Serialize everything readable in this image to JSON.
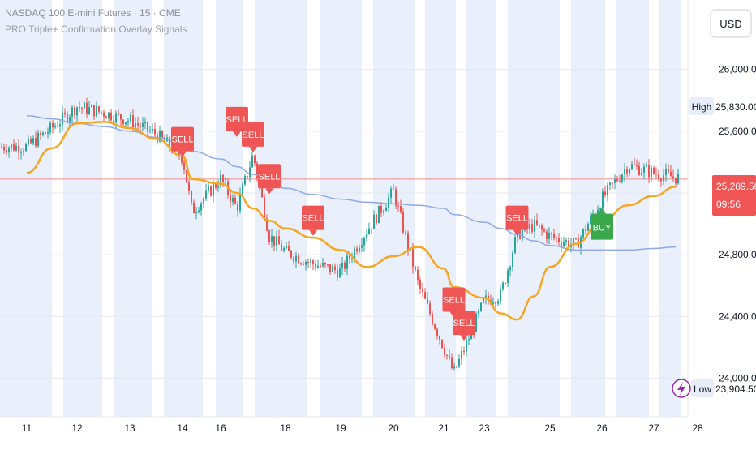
{
  "header": {
    "symbol_line": "NASDAQ 100 E-mini Futures · 15 · CME",
    "indicator_line": "PRO Triple+ Confirmation Overlay Signals"
  },
  "price_axis": {
    "currency_button": "USD",
    "tick_labels": [
      "26,000.00",
      "25,600.00",
      "24,800.00",
      "24,400.00",
      "24,000.00"
    ],
    "high_tag": "High",
    "high_value": "25,830.00",
    "low_tag": "Low",
    "low_value": "23,904.50",
    "last_price": "25,289.50",
    "countdown": "09:56"
  },
  "time_axis": {
    "labels": [
      "11",
      "12",
      "13",
      "14",
      "16",
      "18",
      "19",
      "20",
      "21",
      "23",
      "25",
      "26",
      "27",
      "28"
    ]
  },
  "colors": {
    "up_candle": "#26a69a",
    "down_candle": "#ef5350",
    "ma_fast": "#f5a623",
    "ma_slow": "#8fa9e6",
    "sell_label": "#f05555",
    "buy_label": "#3aa84a",
    "session_band": "#e9effb",
    "last_price_line": "#f28b8b"
  },
  "chart_data": {
    "type": "line",
    "title": "NASDAQ 100 E-mini Futures · 15 · CME",
    "x": [
      "11",
      "11.5",
      "12",
      "12.5",
      "13",
      "13.5",
      "14",
      "14.5",
      "16",
      "16.5",
      "17",
      "17.5",
      "18",
      "18.5",
      "19",
      "19.5",
      "20",
      "20.5",
      "21",
      "21.5",
      "23",
      "23.5",
      "24",
      "24.5",
      "25",
      "25.5",
      "26",
      "26.5",
      "27",
      "27.5"
    ],
    "ylim": [
      23750,
      26450
    ],
    "series": [
      {
        "values": [
          25500,
          25620,
          25760,
          25720,
          25670,
          25580,
          25430,
          25080,
          25290,
          25100,
          25450,
          24920,
          24820,
          24740,
          24690,
          24960,
          25210,
          24600,
          24200,
          24030,
          24500,
          24540,
          24930,
          24990,
          24920,
          24860,
          25160,
          25380,
          25330,
          25300
        ]
      },
      {
        "values": [
          25330,
          25490,
          25650,
          25660,
          25620,
          25550,
          25440,
          25290,
          25260,
          25200,
          25100,
          25020,
          24970,
          24910,
          24830,
          24720,
          24790,
          24850,
          24710,
          24590,
          24520,
          24420,
          24380,
          24530,
          24720,
          24870,
          25020,
          25120,
          25180,
          25240
        ]
      },
      {
        "values": [
          25700,
          25680,
          25650,
          25630,
          25600,
          25560,
          25520,
          25470,
          25420,
          25370,
          25320,
          25270,
          25230,
          25190,
          25160,
          25140,
          25130,
          25120,
          25100,
          25060,
          25010,
          24970,
          24930,
          24890,
          24860,
          24830,
          24830,
          24830,
          24840,
          24850
        ]
      }
    ],
    "signals": [
      {
        "label": "SELL",
        "x": "14",
        "price": 25470
      },
      {
        "label": "SELL",
        "x": "16.5",
        "price": 25600
      },
      {
        "label": "SELL",
        "x": "17",
        "price": 25500
      },
      {
        "label": "SELL",
        "x": "17.5",
        "price": 25230
      },
      {
        "label": "SELL",
        "x": "18.5",
        "price": 24960
      },
      {
        "label": "SELL",
        "x": "21.5",
        "price": 24430
      },
      {
        "label": "SELL",
        "x": "22",
        "price": 24280
      },
      {
        "label": "SELL",
        "x": "24",
        "price": 24960
      },
      {
        "label": "BUY",
        "x": "26",
        "price": 24960
      }
    ],
    "last_price": 25289.5,
    "high": 25830,
    "low": 23904.5
  }
}
